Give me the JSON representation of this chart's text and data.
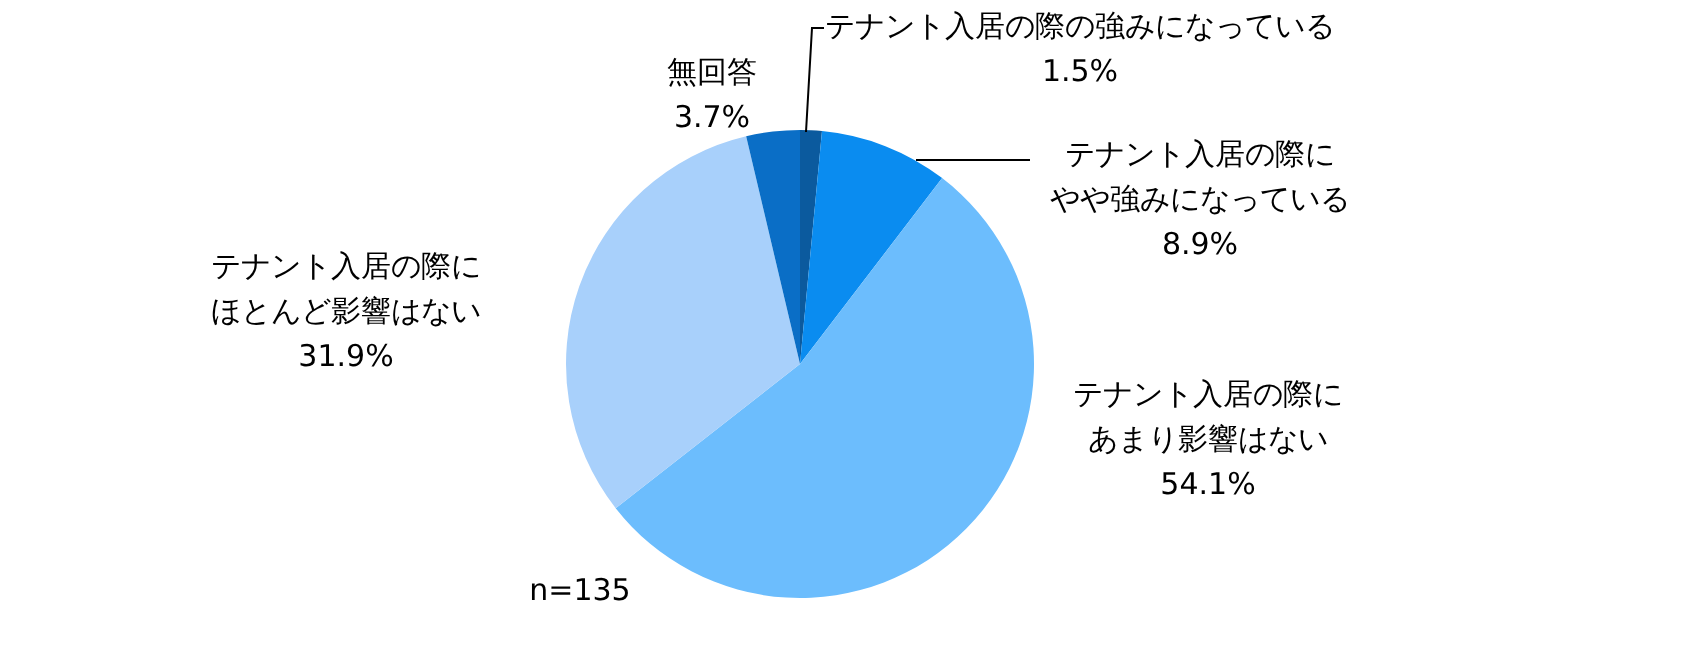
{
  "chart_data": {
    "type": "pie",
    "categories": [
      "テナント入居の際の強みになっている",
      "テナント入居の際にやや強みになっている",
      "テナント入居の際にあまり影響はない",
      "テナント入居の際にほとんど影響はない",
      "無回答"
    ],
    "values": [
      1.5,
      8.9,
      54.1,
      31.9,
      3.7
    ],
    "value_labels": [
      "1.5%",
      "8.9%",
      "54.1%",
      "31.9%",
      "3.7%"
    ],
    "colors": [
      "#0b5a9e",
      "#0a8cf0",
      "#6cbdfd",
      "#a8d0fb",
      "#0a6ec6"
    ],
    "annotations": [
      "n=135"
    ],
    "legend": false
  }
}
